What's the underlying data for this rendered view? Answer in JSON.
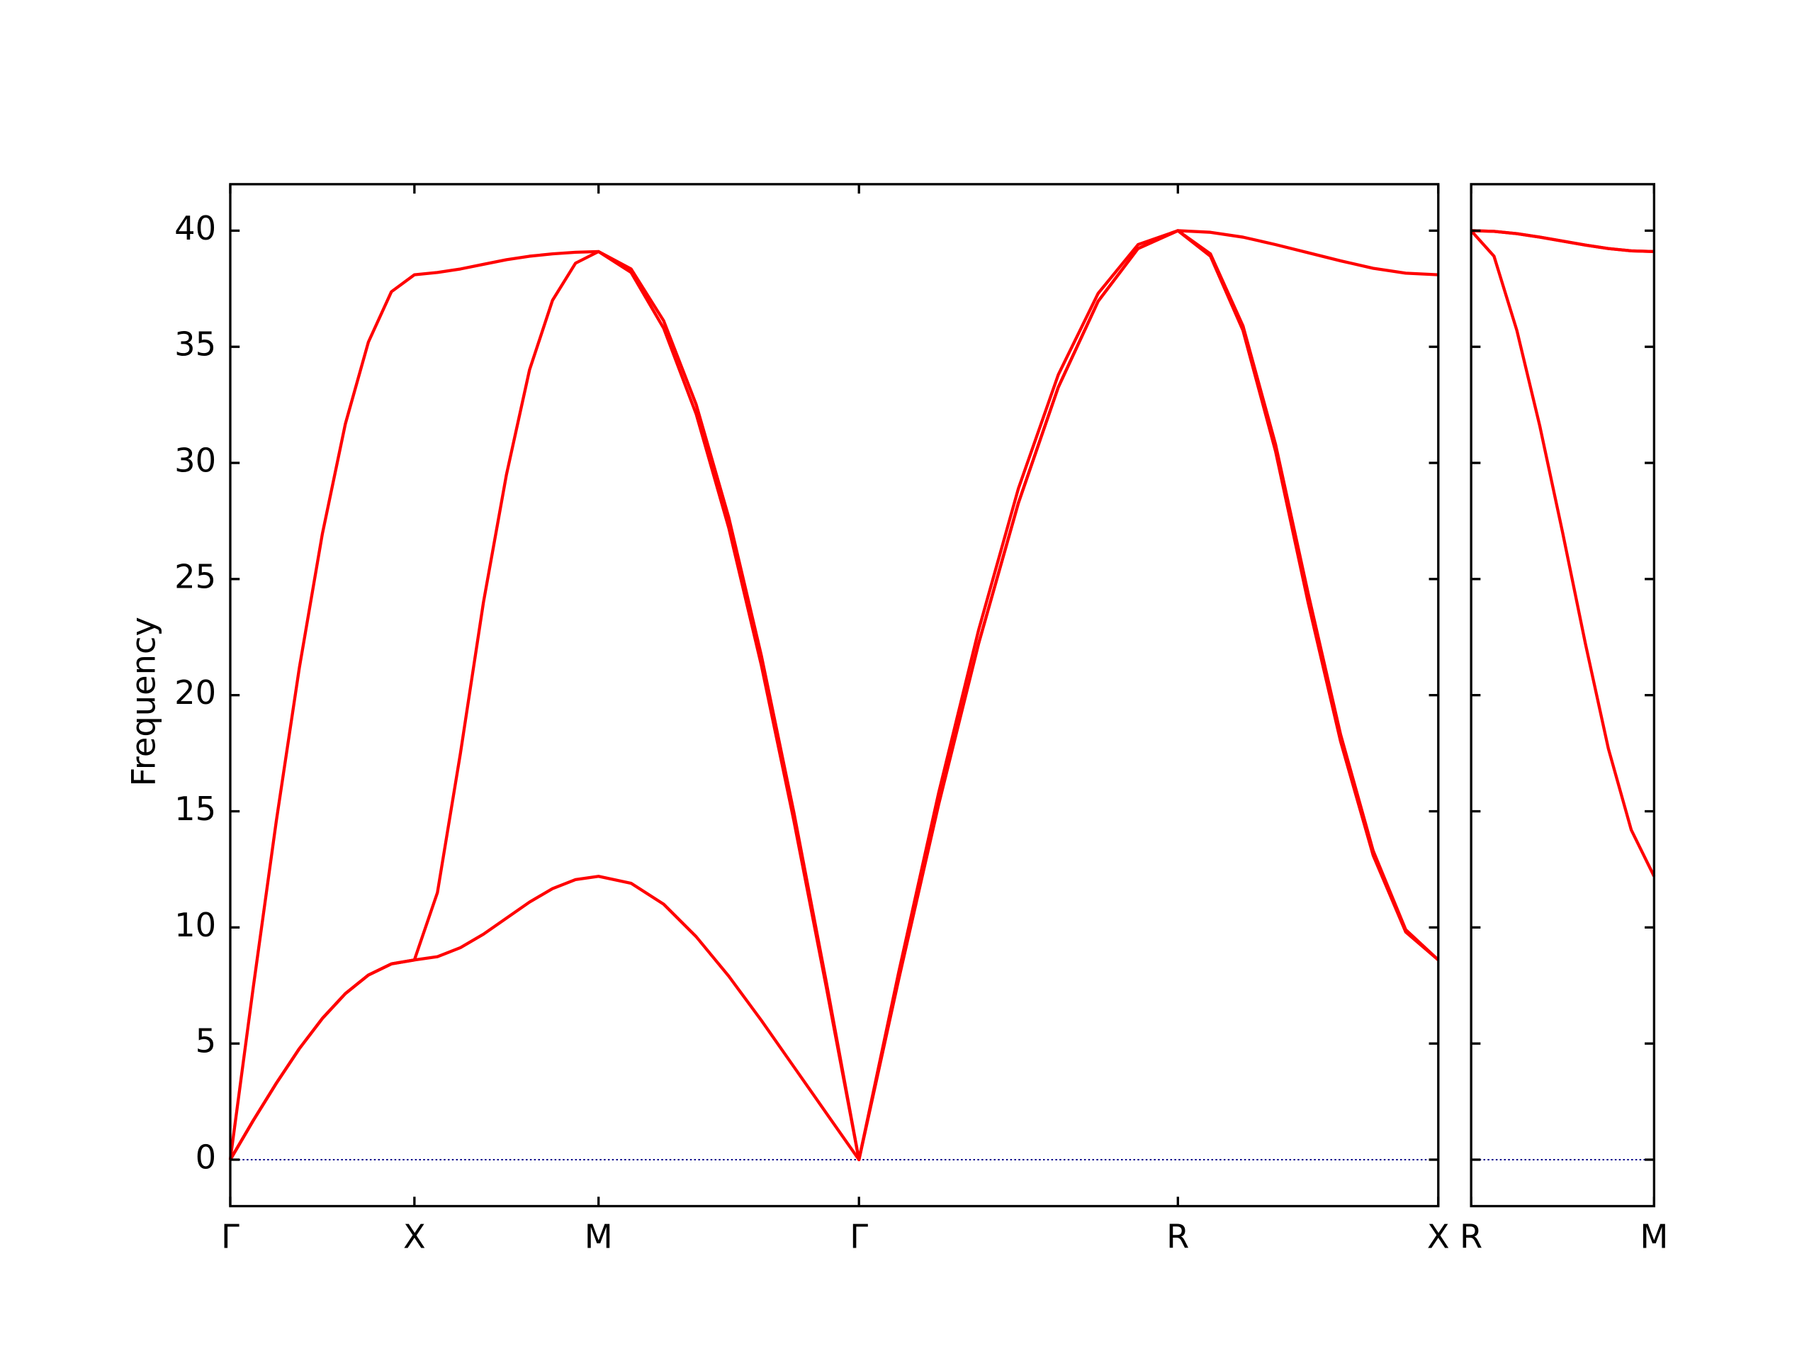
{
  "chart_data": [
    {
      "type": "line",
      "ylabel": "Frequency",
      "x": [
        0,
        0.0625,
        0.125,
        0.1875,
        0.25,
        0.3125,
        0.375,
        0.4375,
        0.5,
        0.5625,
        0.625,
        0.6875,
        0.75,
        0.8125,
        0.875,
        0.9375,
        1.0,
        1.0884,
        1.1768,
        1.2652,
        1.3536,
        1.4419,
        1.5303,
        1.6187,
        1.7071,
        1.8154,
        1.9236,
        2.0319,
        2.1401,
        2.2484,
        2.3566,
        2.4649,
        2.5731,
        2.6615,
        2.7499,
        2.8383,
        2.9266,
        3.015,
        3.1034,
        3.1918,
        3.2802
      ],
      "series": [
        {
          "color": "#ff0000",
          "values": [
            0,
            1.69,
            3.29,
            4.78,
            6.08,
            7.15,
            7.95,
            8.43,
            8.6,
            8.74,
            9.13,
            9.71,
            10.4,
            11.09,
            11.67,
            12.06,
            12.2,
            11.9,
            11.0,
            9.6,
            7.9,
            6.0,
            4.0,
            2.0,
            0,
            7.8,
            15.31,
            22.22,
            28.28,
            33.26,
            36.96,
            39.23,
            40,
            38.9,
            35.7,
            30.5,
            24.0,
            18.0,
            13.1,
            9.8,
            8.6
          ]
        },
        {
          "color": "#ff0000",
          "values": [
            0,
            1.69,
            3.29,
            4.78,
            6.08,
            7.15,
            7.95,
            8.43,
            8.6,
            11.5,
            17.5,
            24.0,
            29.5,
            34.0,
            37.0,
            38.6,
            39.1,
            38.2,
            35.8,
            32.1,
            27.2,
            21.3,
            14.6,
            7.4,
            0,
            7.8,
            15.31,
            22.22,
            28.28,
            33.26,
            36.96,
            39.23,
            40,
            39.0,
            35.9,
            30.8,
            24.4,
            18.3,
            13.3,
            9.9,
            8.6
          ]
        },
        {
          "color": "#ff0000",
          "values": [
            0,
            7.43,
            14.58,
            21.17,
            26.94,
            31.68,
            35.2,
            37.37,
            38.1,
            38.2,
            38.35,
            38.55,
            38.75,
            38.9,
            39.0,
            39.07,
            39.1,
            38.35,
            36.12,
            32.51,
            27.65,
            21.72,
            14.96,
            7.63,
            0,
            8.1,
            15.8,
            22.8,
            28.9,
            33.8,
            37.3,
            39.4,
            40,
            39.93,
            39.72,
            39.4,
            39.05,
            38.7,
            38.38,
            38.17,
            38.1
          ]
        }
      ],
      "xlim": [
        0,
        3.2802
      ],
      "xticks": [
        {
          "value": 0,
          "label": "Γ"
        },
        {
          "value": 0.5,
          "label": "X"
        },
        {
          "value": 1.0,
          "label": "M"
        },
        {
          "value": 1.7071,
          "label": "Γ"
        },
        {
          "value": 2.5731,
          "label": "R"
        },
        {
          "value": 3.2802,
          "label": "X"
        }
      ],
      "ylim": [
        -2,
        42
      ],
      "yticks": [
        0,
        5,
        10,
        15,
        20,
        25,
        30,
        35,
        40
      ],
      "ytick_labels": true,
      "hlines": [
        0
      ],
      "hline_color": "#00008b"
    },
    {
      "type": "line",
      "x": [
        0,
        0.0625,
        0.125,
        0.1875,
        0.25,
        0.3125,
        0.375,
        0.4375,
        0.5
      ],
      "series": [
        {
          "color": "#ff0000",
          "values": [
            40,
            38.9,
            35.7,
            31.6,
            27.0,
            22.2,
            17.7,
            14.2,
            12.2
          ]
        },
        {
          "color": "#ff0000",
          "values": [
            40,
            39.97,
            39.87,
            39.72,
            39.55,
            39.38,
            39.23,
            39.13,
            39.1
          ]
        },
        {
          "color": "#ff0000",
          "values": [
            40,
            39.97,
            39.87,
            39.72,
            39.55,
            39.38,
            39.23,
            39.13,
            39.1
          ]
        }
      ],
      "xlim": [
        0,
        0.5
      ],
      "xticks": [
        {
          "value": 0,
          "label": "R"
        },
        {
          "value": 0.5,
          "label": "M"
        }
      ],
      "ylim": [
        -2,
        42
      ],
      "yticks": [
        0,
        5,
        10,
        15,
        20,
        25,
        30,
        35,
        40
      ],
      "ytick_labels": false,
      "hlines": [
        0
      ],
      "hline_color": "#00008b"
    }
  ]
}
